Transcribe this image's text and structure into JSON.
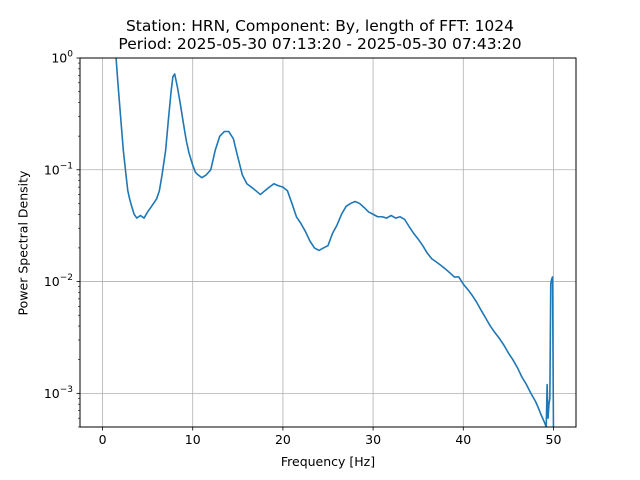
{
  "chart_data": {
    "type": "line",
    "title": "Station: HRN, Component: By, length of FFT: 1024",
    "subtitle": "Period: 2025-05-30 07:13:20 - 2025-05-30 07:43:20",
    "xlabel": "Frequency [Hz]",
    "ylabel": "Power Spectral Density",
    "x_scale": "linear",
    "y_scale": "log",
    "xlim": [
      -2.5,
      52.5
    ],
    "ylim": [
      0.0005,
      1
    ],
    "x_ticks": [
      0,
      10,
      20,
      30,
      40,
      50
    ],
    "y_ticks": [
      0.001,
      0.01,
      0.1,
      1
    ],
    "y_tick_labels": [
      {
        "base": "10",
        "exp": "−3"
      },
      {
        "base": "10",
        "exp": "−2"
      },
      {
        "base": "10",
        "exp": "−1"
      },
      {
        "base": "10",
        "exp": "0"
      }
    ],
    "grid": true,
    "line_color": "#1f77b4",
    "series": [
      {
        "x": [
          1.5,
          1.7,
          2.0,
          2.3,
          2.6,
          2.8,
          3.0,
          3.2,
          3.5,
          3.8,
          4.2,
          4.6,
          5.0,
          5.5,
          6.0,
          6.3,
          6.6,
          7.0,
          7.3,
          7.6,
          7.8,
          8.0,
          8.3,
          8.6,
          9.0,
          9.3,
          9.6,
          10.0,
          10.3,
          10.6,
          11.0,
          11.5,
          12.0,
          12.5,
          13.0,
          13.5,
          14.0,
          14.5,
          15.0,
          15.5,
          16.0,
          16.5,
          17.0,
          17.5,
          18.0,
          18.5,
          19.0,
          19.5,
          20.0,
          20.5,
          21.0,
          21.5,
          22.0,
          22.5,
          23.0,
          23.5,
          24.0,
          24.5,
          25.0,
          25.5,
          26.0,
          26.5,
          27.0,
          27.5,
          28.0,
          28.5,
          29.0,
          29.5,
          30.0,
          30.5,
          31.0,
          31.5,
          32.0,
          32.5,
          33.0,
          33.5,
          34.0,
          34.5,
          35.0,
          35.5,
          36.0,
          36.5,
          37.0,
          37.5,
          38.0,
          38.5,
          39.0,
          39.5,
          40.0,
          40.5,
          41.0,
          41.5,
          42.0,
          42.5,
          43.0,
          43.5,
          44.0,
          44.5,
          45.0,
          45.5,
          46.0,
          46.5,
          47.0,
          47.5,
          48.0,
          48.3,
          48.6,
          48.8,
          49.0,
          49.2,
          49.3,
          49.4,
          49.5,
          49.6,
          49.7,
          49.8,
          49.9,
          50.0
        ],
        "y": [
          1.0,
          0.6,
          0.3,
          0.15,
          0.09,
          0.065,
          0.055,
          0.048,
          0.04,
          0.037,
          0.039,
          0.037,
          0.042,
          0.048,
          0.055,
          0.065,
          0.09,
          0.15,
          0.28,
          0.5,
          0.68,
          0.72,
          0.55,
          0.4,
          0.25,
          0.18,
          0.14,
          0.11,
          0.095,
          0.09,
          0.085,
          0.09,
          0.1,
          0.15,
          0.2,
          0.22,
          0.22,
          0.19,
          0.13,
          0.09,
          0.075,
          0.07,
          0.065,
          0.06,
          0.065,
          0.07,
          0.075,
          0.072,
          0.07,
          0.065,
          0.05,
          0.038,
          0.033,
          0.028,
          0.023,
          0.02,
          0.019,
          0.02,
          0.021,
          0.027,
          0.032,
          0.04,
          0.047,
          0.05,
          0.052,
          0.05,
          0.046,
          0.042,
          0.04,
          0.038,
          0.038,
          0.037,
          0.039,
          0.037,
          0.038,
          0.036,
          0.031,
          0.027,
          0.024,
          0.021,
          0.018,
          0.016,
          0.015,
          0.014,
          0.013,
          0.012,
          0.011,
          0.011,
          0.0095,
          0.0085,
          0.0075,
          0.0065,
          0.0055,
          0.0047,
          0.004,
          0.0035,
          0.0031,
          0.0027,
          0.0023,
          0.002,
          0.0017,
          0.0014,
          0.0012,
          0.001,
          0.00085,
          0.00075,
          0.00065,
          0.0006,
          0.00055,
          0.0005,
          0.0012,
          0.0006,
          0.0008,
          0.0009,
          0.0095,
          0.0105,
          0.011,
          0.0005
        ]
      }
    ]
  }
}
